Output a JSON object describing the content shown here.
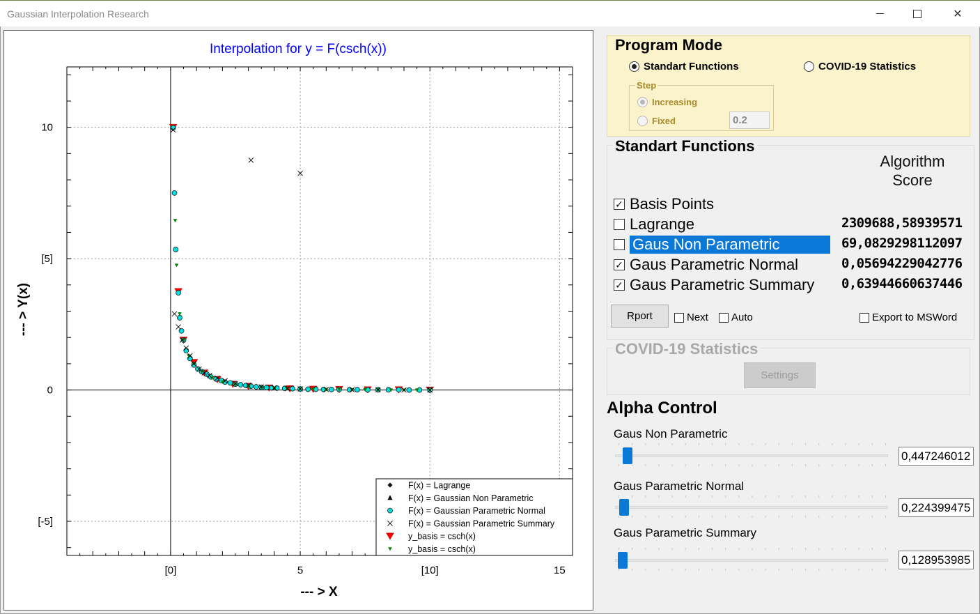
{
  "window": {
    "title": "Gaussian Interpolation Research"
  },
  "program_mode": {
    "title": "Program Mode",
    "options": [
      {
        "label": "Standart Functions",
        "selected": true
      },
      {
        "label": "COVID-19 Statistics",
        "selected": false
      }
    ],
    "step": {
      "title": "Step",
      "options": [
        {
          "label": "Increasing",
          "selected": true
        },
        {
          "label": "Fixed",
          "selected": false
        }
      ],
      "fixed_value": "0.2"
    }
  },
  "standart_functions": {
    "title": "Standart Functions",
    "score_header": "Algorithm Score",
    "rows": [
      {
        "label": "Basis Points",
        "checked": true,
        "score": ""
      },
      {
        "label": "Lagrange",
        "checked": false,
        "score": "2309688,58939571"
      },
      {
        "label": "Gaus Non Parametric",
        "checked": false,
        "score": "69,0829298112097",
        "selected": true
      },
      {
        "label": "Gaus Parametric Normal",
        "checked": true,
        "score": "0,05694229042776"
      },
      {
        "label": "Gaus Parametric Summary",
        "checked": true,
        "score": "0,63944660637446"
      }
    ],
    "report_button": "Rport",
    "next_label": "Next",
    "auto_label": "Auto",
    "export_label": "Export to MSWord"
  },
  "covid": {
    "title": "COVID-19 Statistics",
    "settings_button": "Settings"
  },
  "alpha_control": {
    "title": "Alpha Control",
    "sliders": [
      {
        "label": "Gaus Non Parametric",
        "value": "0,447246012",
        "position": 0.03
      },
      {
        "label": "Gaus Parametric Normal",
        "value": "0,224399475",
        "position": 0.015
      },
      {
        "label": "Gaus Parametric Summary",
        "value": "0,128953985",
        "position": 0.01
      }
    ]
  },
  "colors": {
    "accent": "#0a78d7",
    "title_blue": "#0000ff",
    "marker_red": "#ff0000",
    "marker_green": "#008000",
    "marker_cyan": "#00e0e0"
  },
  "chart_data": {
    "type": "scatter",
    "title": "Interpolation for y = F(csch(x))",
    "xlabel": "--- > X",
    "ylabel": "--- > Y(x)",
    "xlim": [
      -4,
      15.5
    ],
    "ylim": [
      -6.3,
      12.3
    ],
    "x_ticks": [
      {
        "value": 0,
        "label": "[0]"
      },
      {
        "value": 5,
        "label": "5"
      },
      {
        "value": 10,
        "label": "[10]"
      },
      {
        "value": 15,
        "label": "15"
      }
    ],
    "y_ticks": [
      {
        "value": 10,
        "label": "10"
      },
      {
        "value": 5,
        "label": "[5]"
      },
      {
        "value": 0,
        "label": "0"
      },
      {
        "value": -5,
        "label": "[-5]"
      }
    ],
    "grid": true,
    "legend_position": "bottom-right",
    "legend": [
      {
        "label": "F(x) = Lagrange",
        "marker": "diamond"
      },
      {
        "label": "F(x) = Gaussian Non Parametric",
        "marker": "triangle-up"
      },
      {
        "label": "F(x) = Gaussian Parametric Normal",
        "marker": "circle-cyan"
      },
      {
        "label": "F(x) = Gaussian Parametric Summary",
        "marker": "x"
      },
      {
        "label": "y_basis = csch(x)",
        "marker": "triangle-down-red"
      },
      {
        "label": "y_basis = csch(x)",
        "marker": "triangle-down-green"
      }
    ],
    "series": [
      {
        "name": "F(x) = Gaussian Parametric Normal",
        "points": [
          [
            0.1,
            9.98
          ],
          [
            0.15,
            7.5
          ],
          [
            0.2,
            5.35
          ],
          [
            0.3,
            3.7
          ],
          [
            0.35,
            2.75
          ],
          [
            0.42,
            2.25
          ],
          [
            0.5,
            1.9
          ],
          [
            0.6,
            1.5
          ],
          [
            0.75,
            1.2
          ],
          [
            0.9,
            0.95
          ],
          [
            1.05,
            0.8
          ],
          [
            1.2,
            0.7
          ],
          [
            1.4,
            0.6
          ],
          [
            1.55,
            0.5
          ],
          [
            1.75,
            0.42
          ],
          [
            1.95,
            0.36
          ],
          [
            2.1,
            0.3
          ],
          [
            2.3,
            0.27
          ],
          [
            2.5,
            0.22
          ],
          [
            2.7,
            0.2
          ],
          [
            2.9,
            0.17
          ],
          [
            3.1,
            0.14
          ],
          [
            3.3,
            0.12
          ],
          [
            3.5,
            0.1
          ],
          [
            3.7,
            0.09
          ],
          [
            3.9,
            0.08
          ],
          [
            4.1,
            0.07
          ],
          [
            4.4,
            0.06
          ],
          [
            4.7,
            0.05
          ],
          [
            5.0,
            0.04
          ],
          [
            5.3,
            0.03
          ],
          [
            5.6,
            0.03
          ],
          [
            5.9,
            0.02
          ],
          [
            6.2,
            0.02
          ],
          [
            6.5,
            0.02
          ],
          [
            6.9,
            0.01
          ],
          [
            7.2,
            0.01
          ],
          [
            7.6,
            0.01
          ],
          [
            8.0,
            0.01
          ],
          [
            8.4,
            0.01
          ],
          [
            8.8,
            0.01
          ],
          [
            9.2,
            0.0
          ],
          [
            9.6,
            0.0
          ],
          [
            10.0,
            0.0
          ]
        ]
      },
      {
        "name": "F(x) = Gaussian Parametric Summary",
        "points": [
          [
            0.1,
            9.9
          ],
          [
            0.15,
            2.9
          ],
          [
            0.3,
            2.4
          ],
          [
            0.45,
            1.9
          ],
          [
            0.6,
            1.6
          ],
          [
            0.75,
            1.3
          ],
          [
            0.9,
            1.0
          ],
          [
            1.1,
            0.8
          ],
          [
            1.3,
            0.65
          ],
          [
            1.5,
            0.55
          ],
          [
            1.8,
            0.45
          ],
          [
            2.1,
            0.35
          ],
          [
            2.5,
            0.25
          ],
          [
            3.0,
            0.18
          ],
          [
            3.5,
            0.12
          ],
          [
            4.0,
            0.08
          ],
          [
            4.5,
            0.06
          ],
          [
            5.0,
            0.04
          ],
          [
            6.0,
            0.02
          ],
          [
            7.0,
            0.01
          ],
          [
            8.0,
            0.01
          ],
          [
            9.0,
            0.0
          ],
          [
            10.0,
            0.0
          ],
          [
            3.1,
            8.75
          ],
          [
            5.0,
            8.25
          ]
        ]
      },
      {
        "name": "y_basis = csch(x)",
        "marker": "red",
        "points": [
          [
            0.1,
            10.0
          ],
          [
            0.3,
            3.75
          ],
          [
            0.5,
            1.9
          ],
          [
            0.9,
            1.05
          ],
          [
            1.3,
            0.65
          ],
          [
            1.8,
            0.4
          ],
          [
            2.4,
            0.22
          ],
          [
            3.0,
            0.14
          ],
          [
            3.8,
            0.08
          ],
          [
            4.6,
            0.05
          ],
          [
            5.5,
            0.03
          ],
          [
            6.5,
            0.02
          ],
          [
            7.6,
            0.01
          ],
          [
            8.8,
            0.01
          ],
          [
            10.0,
            0.0
          ]
        ]
      },
      {
        "name": "y_basis = csch(x)",
        "marker": "green",
        "points": [
          [
            0.18,
            6.45
          ],
          [
            0.23,
            4.75
          ],
          [
            0.35,
            2.9
          ],
          [
            0.5,
            1.9
          ],
          [
            0.7,
            1.3
          ],
          [
            0.9,
            1.0
          ],
          [
            1.2,
            0.7
          ],
          [
            1.6,
            0.45
          ],
          [
            2.0,
            0.3
          ],
          [
            2.5,
            0.2
          ],
          [
            3.0,
            0.14
          ],
          [
            3.5,
            0.1
          ],
          [
            4.0,
            0.07
          ],
          [
            4.5,
            0.05
          ],
          [
            5.0,
            0.04
          ],
          [
            5.5,
            0.03
          ],
          [
            6.0,
            0.02
          ],
          [
            6.5,
            0.02
          ],
          [
            7.0,
            0.01
          ],
          [
            7.5,
            0.01
          ],
          [
            8.0,
            0.01
          ],
          [
            8.5,
            0.0
          ],
          [
            9.0,
            0.0
          ],
          [
            9.5,
            0.0
          ],
          [
            10.0,
            0.0
          ]
        ]
      }
    ]
  }
}
